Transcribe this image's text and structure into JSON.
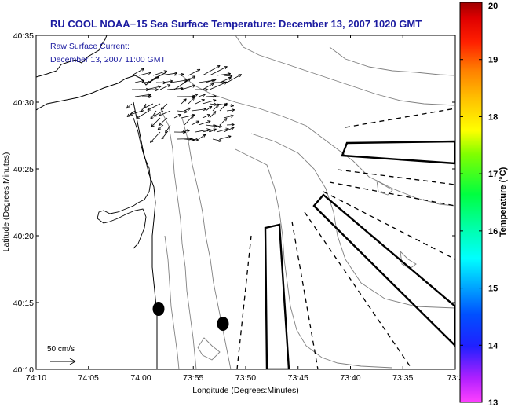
{
  "chart_data": {
    "type": "map",
    "title": "RU COOL  NOAA−15  Sea Surface Temperature:  December 13, 2007 1020 GMT",
    "annotation": [
      "Raw Surface Current:",
      "December 13, 2007 11:00 GMT"
    ],
    "xlabel": "Longitude (Degrees:Minutes)",
    "ylabel": "Latitude (Degrees:Minutes)",
    "x_tick_labels": [
      "74:10",
      "74:05",
      "74:00",
      "73:55",
      "73:50",
      "73:45",
      "73:40",
      "73:35",
      "73:3"
    ],
    "y_tick_labels": [
      "40:10",
      "40:15",
      "40:20",
      "40:25",
      "40:30",
      "40:35"
    ],
    "xlim_minutes_west": [
      4450,
      4410
    ],
    "ylim_minutes_north": [
      2410,
      2435
    ],
    "colorbar": {
      "label": "Temperature (°C)",
      "ticks": [
        13,
        14,
        15,
        16,
        17,
        18,
        19,
        20
      ],
      "range": [
        13,
        20
      ]
    },
    "scale_label": "50 cm/s",
    "grid": false,
    "markers": [
      {
        "shape": "filled-ellipse",
        "lon_min": 4438.8,
        "lat_min": 2414.7
      },
      {
        "shape": "filled-ellipse",
        "lon_min": 4432.3,
        "lat_min": 2413.5
      }
    ]
  }
}
